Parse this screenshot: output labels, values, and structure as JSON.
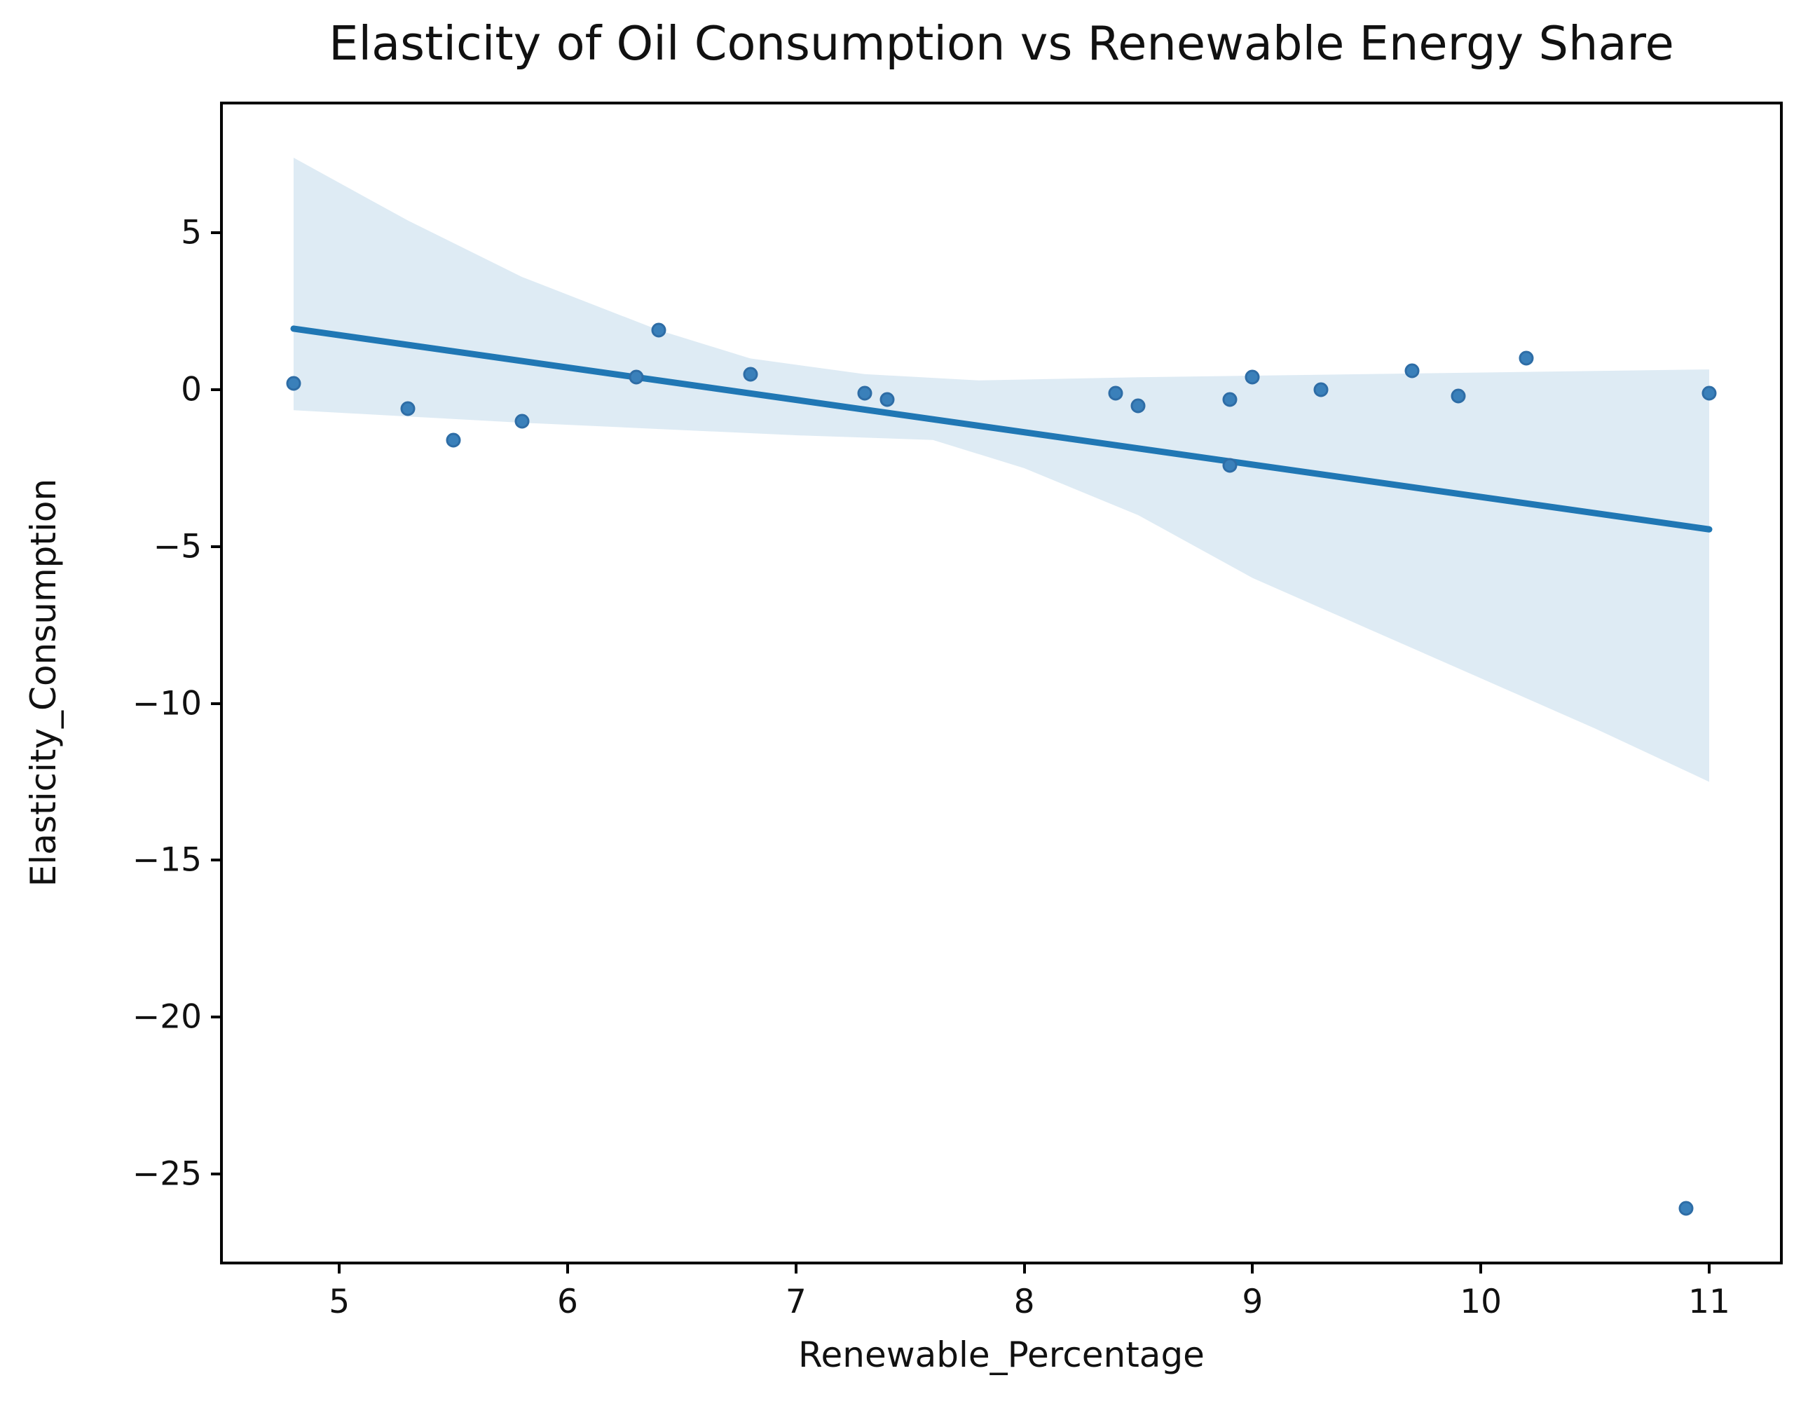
{
  "figure": {
    "title": "Elasticity of Oil Consumption vs Renewable Energy Share",
    "xlabel": "Renewable_Percentage",
    "ylabel": "Elasticity_Consumption"
  },
  "chart_data": {
    "type": "scatter",
    "title": "Elasticity of Oil Consumption vs Renewable Energy Share",
    "xlabel": "Renewable_Percentage",
    "ylabel": "Elasticity_Consumption",
    "xlim": [
      4.49,
      11.31
    ],
    "ylim": [
      -27.8,
      9.1
    ],
    "grid": false,
    "legend": "none",
    "x_ticks": [
      5,
      6,
      7,
      8,
      9,
      10,
      11
    ],
    "x_tick_labels": [
      "5",
      "6",
      "7",
      "8",
      "9",
      "10",
      "11"
    ],
    "y_ticks": [
      5,
      0,
      -5,
      -10,
      -15,
      -20,
      -25
    ],
    "y_tick_labels": [
      "5",
      "0",
      "−5",
      "−10",
      "−15",
      "−20",
      "−25"
    ],
    "points": [
      [
        4.8,
        0.2
      ],
      [
        5.3,
        -0.6
      ],
      [
        5.5,
        -1.6
      ],
      [
        5.8,
        -1.0
      ],
      [
        6.3,
        0.4
      ],
      [
        6.4,
        1.9
      ],
      [
        6.8,
        0.5
      ],
      [
        7.3,
        -0.1
      ],
      [
        7.4,
        -0.3
      ],
      [
        8.4,
        -0.1
      ],
      [
        8.5,
        -0.5
      ],
      [
        8.9,
        -0.3
      ],
      [
        8.9,
        -2.4
      ],
      [
        9.0,
        0.4
      ],
      [
        9.3,
        0.0
      ],
      [
        9.7,
        0.6
      ],
      [
        9.9,
        -0.2
      ],
      [
        10.2,
        1.0
      ],
      [
        10.9,
        -26.1
      ],
      [
        11.0,
        -0.1
      ]
    ],
    "regression_line": {
      "x": [
        4.8,
        11.0
      ],
      "y": [
        1.95,
        -4.45
      ]
    },
    "ci_band": {
      "upper": [
        [
          4.8,
          7.4
        ],
        [
          5.3,
          5.4
        ],
        [
          5.8,
          3.6
        ],
        [
          6.4,
          1.9
        ],
        [
          6.8,
          1.0
        ],
        [
          7.3,
          0.5
        ],
        [
          7.8,
          0.3
        ],
        [
          8.5,
          0.4
        ],
        [
          9.5,
          0.5
        ],
        [
          11.0,
          0.65
        ]
      ],
      "lower": [
        [
          4.8,
          -0.65
        ],
        [
          5.3,
          -0.85
        ],
        [
          5.8,
          -1.05
        ],
        [
          6.4,
          -1.25
        ],
        [
          7.0,
          -1.45
        ],
        [
          7.6,
          -1.6
        ],
        [
          8.0,
          -2.5
        ],
        [
          8.5,
          -4.0
        ],
        [
          9.0,
          -6.0
        ],
        [
          9.5,
          -7.6
        ],
        [
          10.0,
          -9.2
        ],
        [
          10.5,
          -10.8
        ],
        [
          11.0,
          -12.5
        ]
      ]
    },
    "colors": {
      "point": "#3a80ba",
      "point_edge": "#2e6da6",
      "line": "#2077b4",
      "band": "#1f77b4",
      "band_opacity": 0.15,
      "text": "#111111",
      "spine": "#000000"
    }
  }
}
